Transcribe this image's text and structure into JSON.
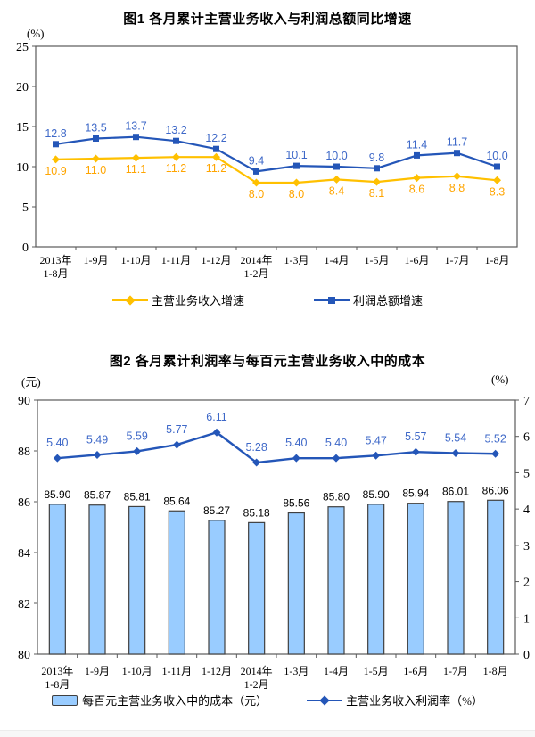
{
  "colors": {
    "blue_line": "#2456B8",
    "blue_label": "#3E68C8",
    "orange_line": "#FFC000",
    "orange_label": "#FFA500",
    "bar_fill": "#99CCFF",
    "bar_border": "#404040",
    "axis_border": "#595959",
    "text": "#000000"
  },
  "chart_data": [
    {
      "id": "fig1",
      "type": "line",
      "title": "图1  各月累计主营业务收入与利润总额同比增速",
      "y_unit": "(%)",
      "ylim": [
        0,
        25
      ],
      "y_step": 5,
      "legend_position": "bottom",
      "grid": false,
      "categories": [
        [
          "2013年",
          "1-8月"
        ],
        [
          "1-9月"
        ],
        [
          "1-10月"
        ],
        [
          "1-11月"
        ],
        [
          "1-12月"
        ],
        [
          "2014年",
          "1-2月"
        ],
        [
          "1-3月"
        ],
        [
          "1-4月"
        ],
        [
          "1-5月"
        ],
        [
          "1-6月"
        ],
        [
          "1-7月"
        ],
        [
          "1-8月"
        ]
      ],
      "series": [
        {
          "name": "主营业务收入增速",
          "marker": "diamond",
          "color": "#FFC000",
          "label_color": "#FFA500",
          "label_position": "below",
          "decimals": 1,
          "values": [
            10.9,
            11.0,
            11.1,
            11.2,
            11.2,
            8.0,
            8.0,
            8.4,
            8.1,
            8.6,
            8.8,
            8.3
          ]
        },
        {
          "name": "利润总额增速",
          "marker": "square",
          "color": "#2456B8",
          "label_color": "#3E68C8",
          "label_position": "above",
          "decimals": 1,
          "values": [
            12.8,
            13.5,
            13.7,
            13.2,
            12.2,
            9.4,
            10.1,
            10.0,
            9.8,
            11.4,
            11.7,
            10.0
          ]
        }
      ]
    },
    {
      "id": "fig2",
      "type": "bar+line",
      "title": "图2  各月累计利润率与每百元主营业务收入中的成本",
      "y_left_unit": "(元)",
      "y_right_unit": "(%)",
      "y_left_lim": [
        80,
        90
      ],
      "y_left_step": 2,
      "y_right_lim": [
        0,
        7
      ],
      "y_right_step": 1,
      "legend_position": "bottom",
      "grid": false,
      "categories": [
        [
          "2013年",
          "1-8月"
        ],
        [
          "1-9月"
        ],
        [
          "1-10月"
        ],
        [
          "1-11月"
        ],
        [
          "1-12月"
        ],
        [
          "2014年",
          "1-2月"
        ],
        [
          "1-3月"
        ],
        [
          "1-4月"
        ],
        [
          "1-5月"
        ],
        [
          "1-6月"
        ],
        [
          "1-7月"
        ],
        [
          "1-8月"
        ]
      ],
      "bars": {
        "name": "每百元主营业务收入中的成本（元）",
        "fill": "#99CCFF",
        "border": "#404040",
        "decimals": 2,
        "values": [
          85.9,
          85.87,
          85.81,
          85.64,
          85.27,
          85.18,
          85.56,
          85.8,
          85.9,
          85.94,
          86.01,
          86.06
        ]
      },
      "line": {
        "name": "主营业务收入利润率（%）",
        "marker": "diamond",
        "color": "#2456B8",
        "label_color": "#3E68C8",
        "decimals": 2,
        "values": [
          5.4,
          5.49,
          5.59,
          5.77,
          6.11,
          5.28,
          5.4,
          5.4,
          5.47,
          5.57,
          5.54,
          5.52
        ]
      }
    }
  ]
}
